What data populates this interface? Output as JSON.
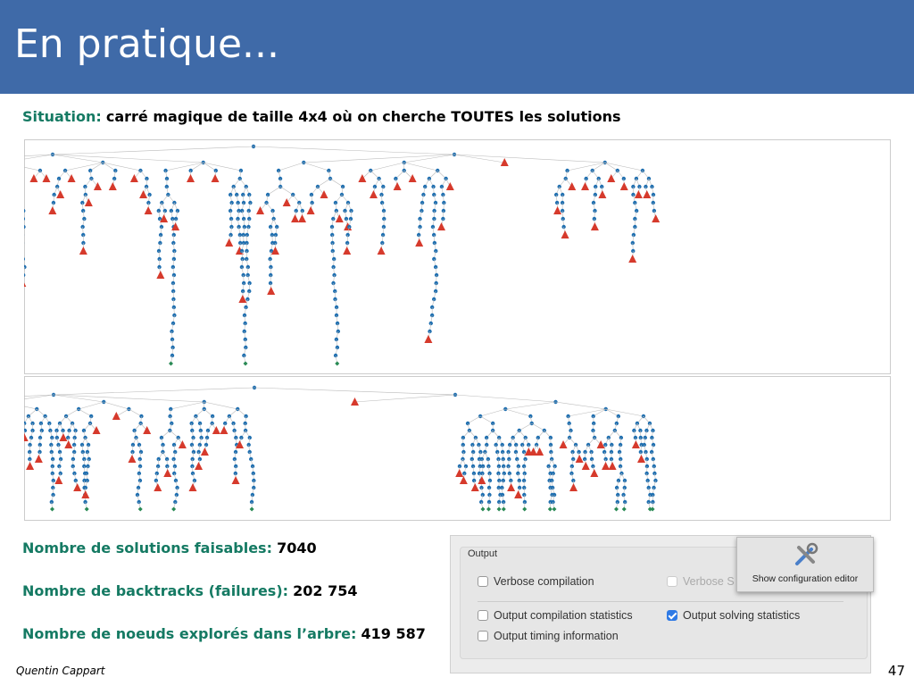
{
  "header": {
    "title": "En pratique..."
  },
  "situation": {
    "label": "Situation:",
    "text": "carré magique de taille 4x4 où on cherche TOUTES les solutions"
  },
  "stats": [
    {
      "label": "Nombre de solutions faisables:",
      "value": "7040"
    },
    {
      "label": "Nombre de backtracks (failures):",
      "value": "202 754"
    },
    {
      "label": "Nombre de noeuds explorés dans l’arbre:",
      "value": "419 587"
    }
  ],
  "output_panel": {
    "title": "Output",
    "button": "Show configuration editor",
    "options": [
      {
        "label": "Verbose compilation",
        "checked": false
      },
      {
        "label": "Verbose S",
        "checked": false
      },
      {
        "label": "Output compilation statistics",
        "checked": false
      },
      {
        "label": "Output solving statistics",
        "checked": true
      },
      {
        "label": "Output timing information",
        "checked": false
      }
    ]
  },
  "footer": {
    "author": "Quentin Cappart",
    "page": "47"
  }
}
